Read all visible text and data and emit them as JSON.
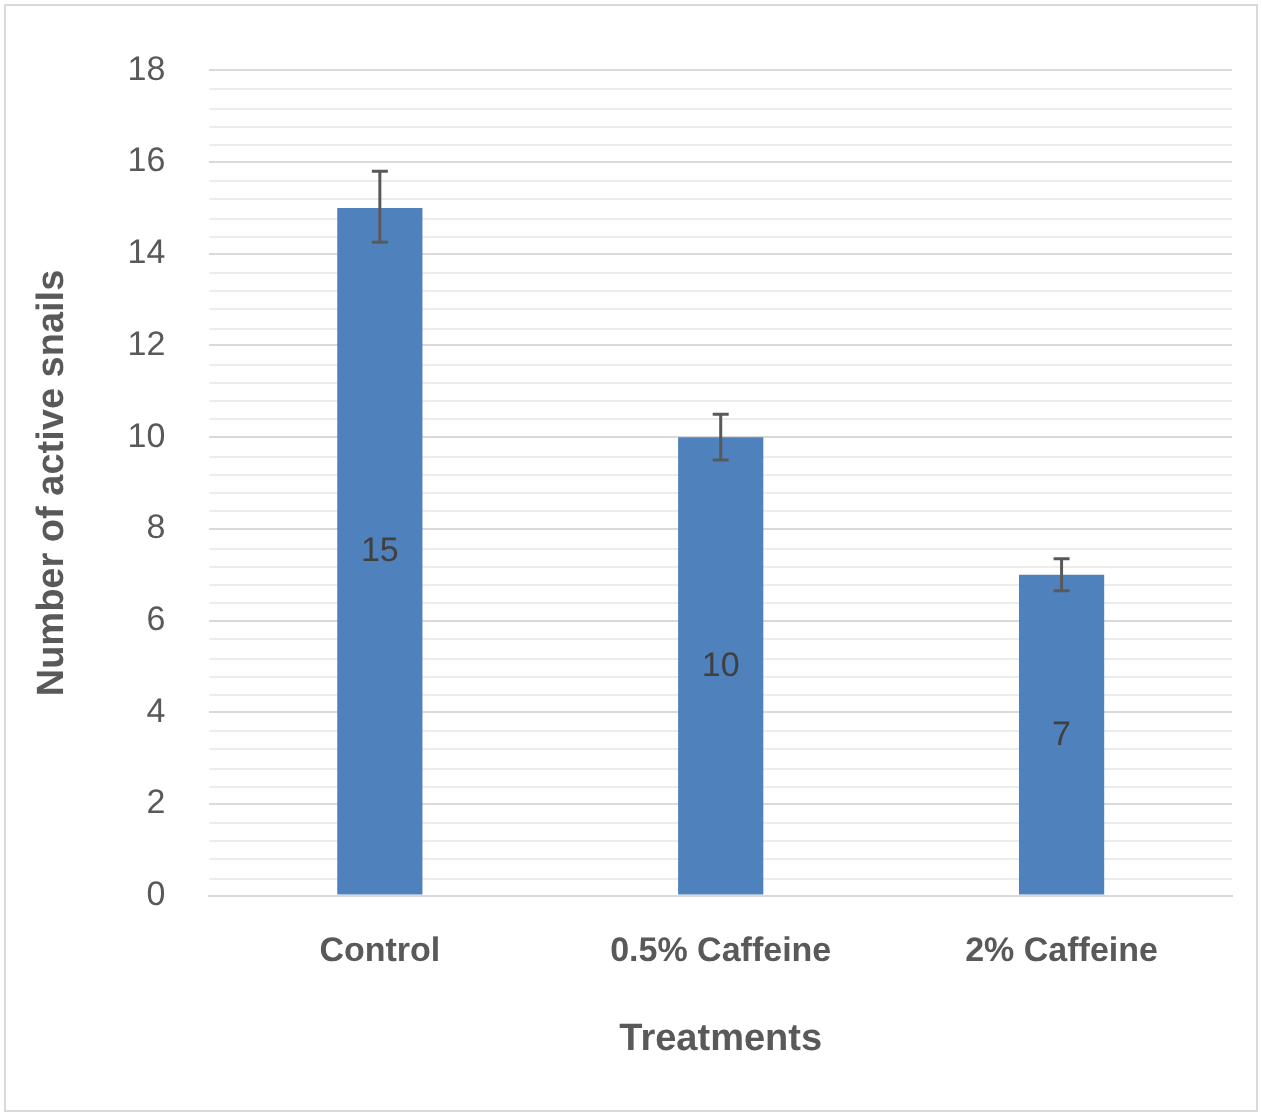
{
  "chart_data": {
    "type": "bar",
    "xlabel": "Treatments",
    "ylabel": "Number of active snails",
    "categories": [
      "Control",
      "0.5% Caffeine",
      "2% Caffeine"
    ],
    "values": [
      15,
      10,
      7
    ],
    "color": "#4f81bd",
    "errors": [
      [
        14.25,
        15.8
      ],
      [
        9.5,
        10.5
      ],
      [
        6.65,
        7.35
      ]
    ],
    "ylim": [
      0,
      18
    ],
    "yticks": [
      0,
      2,
      4,
      6,
      8,
      10,
      12,
      14,
      16,
      18
    ],
    "grid": "y",
    "data_labels": true
  }
}
